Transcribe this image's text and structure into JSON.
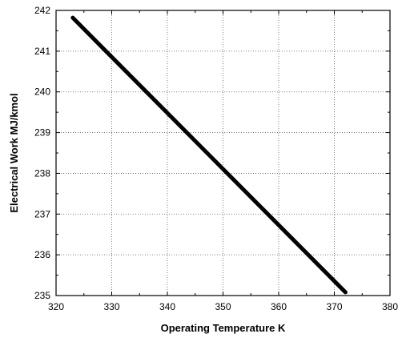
{
  "chart_data": {
    "type": "line",
    "title": "",
    "xlabel": "Operating Temperature  K",
    "ylabel": "Electrical Work  MJ/kmol",
    "xlim": [
      320,
      380
    ],
    "ylim": [
      235,
      242
    ],
    "xticks": [
      320,
      330,
      340,
      350,
      360,
      370,
      380
    ],
    "yticks": [
      235,
      236,
      237,
      238,
      239,
      240,
      241,
      242
    ],
    "grid": true,
    "legend": "none",
    "series": [
      {
        "color": "#000000",
        "x": [
          323,
          372
        ],
        "y": [
          241.82,
          235.08
        ]
      }
    ]
  }
}
